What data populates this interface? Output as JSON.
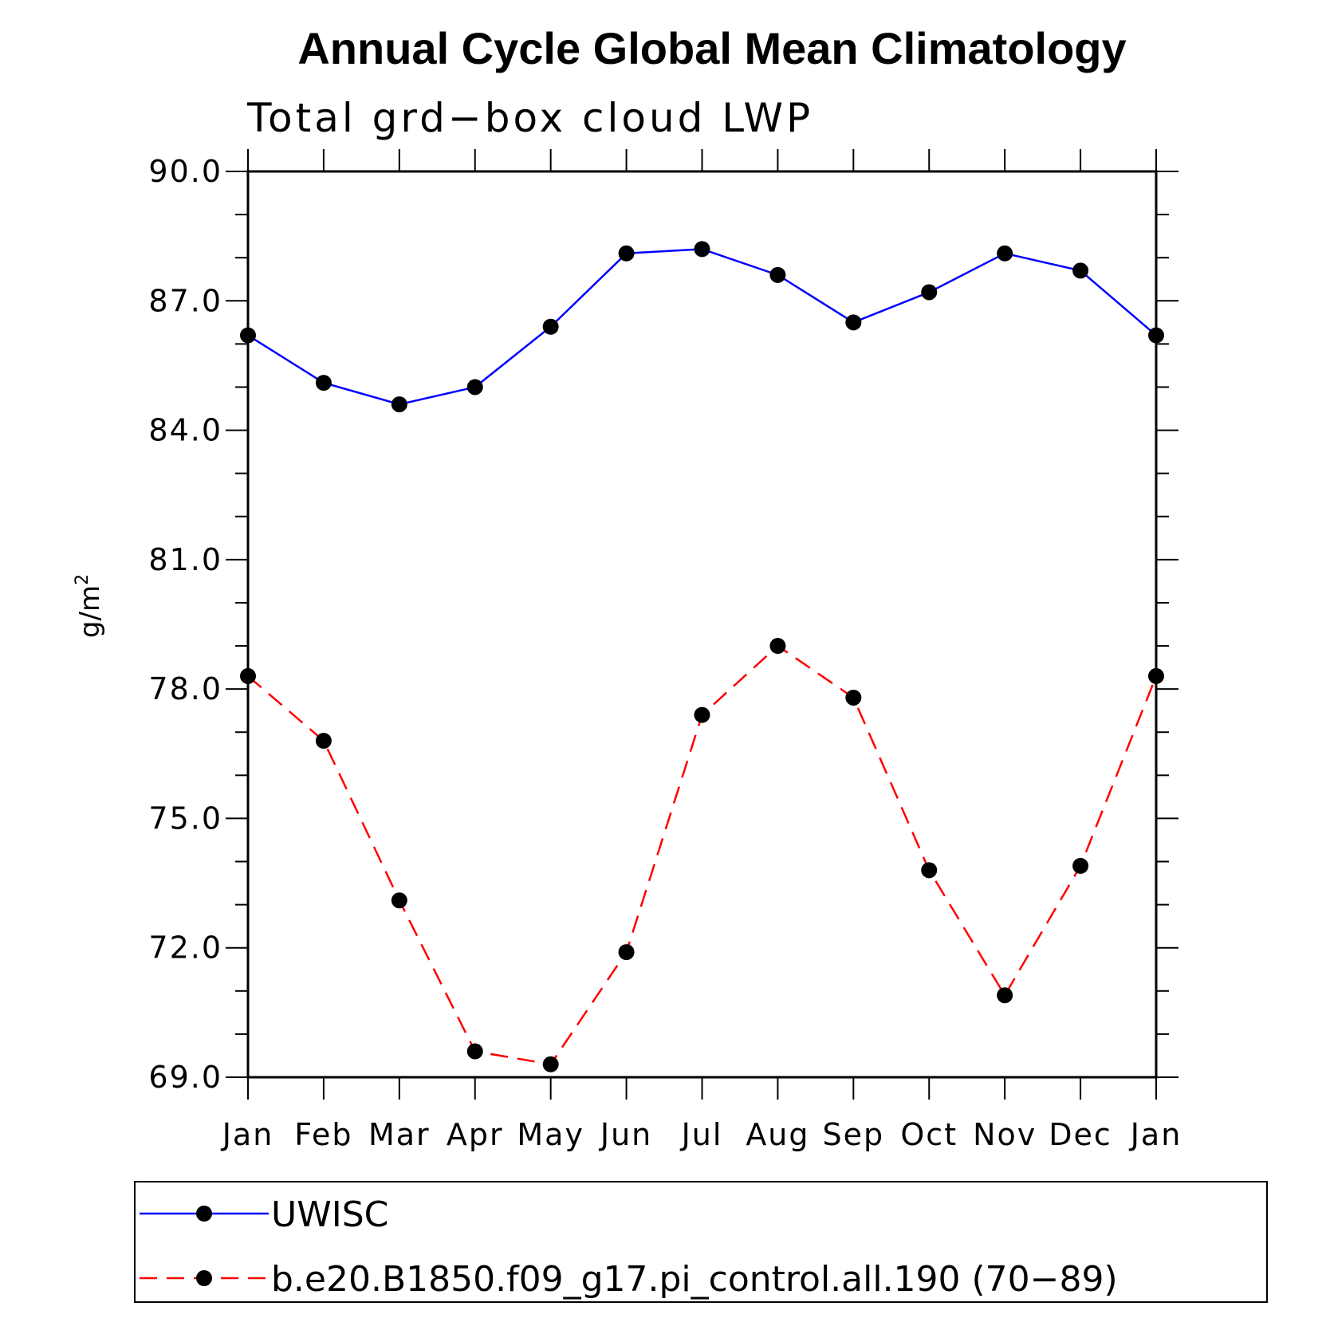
{
  "chart_data": {
    "type": "line",
    "title": "Annual Cycle Global Mean Climatology",
    "subtitle": "Total grd−box cloud LWP",
    "ylabel_base": "g/m",
    "ylabel_sup": "2",
    "categories": [
      "Jan",
      "Feb",
      "Mar",
      "Apr",
      "May",
      "Jun",
      "Jul",
      "Aug",
      "Sep",
      "Oct",
      "Nov",
      "Dec",
      "Jan"
    ],
    "ylim": [
      69.0,
      90.0
    ],
    "yticks": [
      69.0,
      72.0,
      75.0,
      78.0,
      81.0,
      84.0,
      87.0,
      90.0
    ],
    "ytick_labels": [
      "69.0",
      "72.0",
      "75.0",
      "78.0",
      "81.0",
      "84.0",
      "87.0",
      "90.0"
    ],
    "grid": false,
    "legend_position": "bottom",
    "series": [
      {
        "name": "UWISC",
        "color": "#0000ff",
        "dash": "solid",
        "marker": "filled-circle",
        "values": [
          86.2,
          85.1,
          84.6,
          85.0,
          86.4,
          88.1,
          88.2,
          87.6,
          86.5,
          87.2,
          88.1,
          87.7,
          86.2
        ]
      },
      {
        "name": "b.e20.B1850.f09_g17.pi_control.all.190 (70−89)",
        "color": "#ff0000",
        "dash": "dashed",
        "marker": "filled-circle",
        "values": [
          78.3,
          76.8,
          73.1,
          69.6,
          69.3,
          71.9,
          77.4,
          79.0,
          77.8,
          73.8,
          70.9,
          73.9,
          78.3
        ]
      }
    ]
  }
}
